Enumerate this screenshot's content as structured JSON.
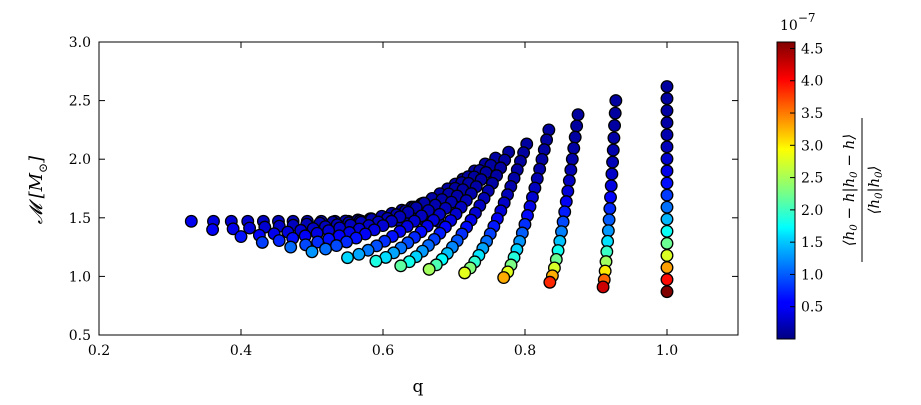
{
  "chart_data": {
    "type": "scatter",
    "xlabel": "q",
    "ylabel": "𝓜 [M⊙]",
    "xlim": [
      0.2,
      1.1
    ],
    "ylim": [
      0.5,
      3.0
    ],
    "xticks": [
      "0.2",
      "0.4",
      "0.6",
      "0.8",
      "1.0"
    ],
    "yticks": [
      "0.5",
      "1.0",
      "1.5",
      "2.0",
      "2.5",
      "3.0"
    ],
    "colorbar": {
      "label": "⟨h₀ − h|h₀ − h⟩ / ⟨h₀|h₀⟩",
      "exponent": "10⁻⁷",
      "range": [
        0.0,
        4.6
      ],
      "ticks": [
        "0.5",
        "1.0",
        "1.5",
        "2.0",
        "2.5",
        "3.0",
        "3.5",
        "4.0",
        "4.5"
      ],
      "colormap": "jet"
    },
    "tracks": [
      {
        "q_end": 0.33,
        "mc_end": 1.47,
        "mc_max": 1.47,
        "c_end": 0.35
      },
      {
        "q_end": 0.36,
        "mc_end": 1.4,
        "mc_max": 1.55,
        "c_end": 0.4
      },
      {
        "q_end": 0.4,
        "mc_end": 1.34,
        "mc_max": 1.62,
        "c_end": 0.5
      },
      {
        "q_end": 0.43,
        "mc_end": 1.29,
        "mc_max": 1.7,
        "c_end": 0.7
      },
      {
        "q_end": 0.47,
        "mc_end": 1.25,
        "mc_max": 1.76,
        "c_end": 0.9
      },
      {
        "q_end": 0.5,
        "mc_end": 1.21,
        "mc_max": 1.83,
        "c_end": 1.1
      },
      {
        "q_end": 0.55,
        "mc_end": 1.16,
        "mc_max": 1.9,
        "c_end": 1.4
      },
      {
        "q_end": 0.59,
        "mc_end": 1.13,
        "mc_max": 1.96,
        "c_end": 1.7
      },
      {
        "q_end": 0.625,
        "mc_end": 1.09,
        "mc_max": 2.01,
        "c_end": 2.0
      },
      {
        "q_end": 0.665,
        "mc_end": 1.06,
        "mc_max": 2.06,
        "c_end": 2.3
      },
      {
        "q_end": 0.715,
        "mc_end": 1.03,
        "mc_max": 2.13,
        "c_end": 2.6
      },
      {
        "q_end": 0.77,
        "mc_end": 0.99,
        "mc_max": 2.25,
        "c_end": 3.1
      },
      {
        "q_end": 0.835,
        "mc_end": 0.95,
        "mc_max": 2.38,
        "c_end": 3.7
      },
      {
        "q_end": 0.91,
        "mc_end": 0.91,
        "mc_max": 2.5,
        "c_end": 4.1
      },
      {
        "q_end": 1.0,
        "mc_end": 0.87,
        "mc_max": 2.62,
        "c_end": 4.6
      }
    ]
  }
}
